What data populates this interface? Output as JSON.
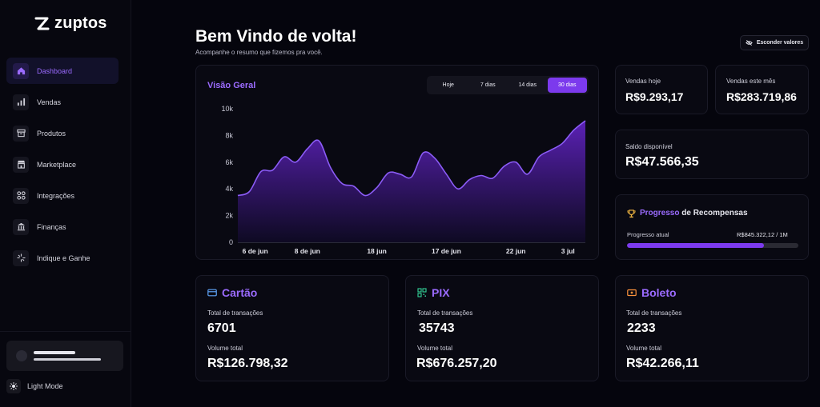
{
  "brand": {
    "name": "zuptos"
  },
  "sidebar": {
    "items": [
      {
        "label": "Dashboard",
        "icon": "home-icon",
        "active": true
      },
      {
        "label": "Vendas",
        "icon": "bar-chart-icon",
        "active": false
      },
      {
        "label": "Produtos",
        "icon": "box-icon",
        "active": false
      },
      {
        "label": "Marketplace",
        "icon": "store-icon",
        "active": false
      },
      {
        "label": "Integrações",
        "icon": "grid-icon",
        "active": false
      },
      {
        "label": "Finanças",
        "icon": "bank-icon",
        "active": false
      },
      {
        "label": "Indique e Ganhe",
        "icon": "sparkle-icon",
        "active": false
      }
    ],
    "light_mode_label": "Light Mode"
  },
  "header": {
    "title": "Bem Vindo de volta!",
    "subtitle": "Acompanhe o resumo que fizemos pra você.",
    "hide_values_label": "Esconder valores"
  },
  "overview": {
    "title": "Visão Geral",
    "tabs": [
      {
        "label": "Hoje",
        "active": false
      },
      {
        "label": "7 dias",
        "active": false
      },
      {
        "label": "14 dias",
        "active": false
      },
      {
        "label": "30 dias",
        "active": true
      }
    ]
  },
  "chart_data": {
    "type": "area",
    "title": "",
    "xlabel": "",
    "ylabel": "",
    "ylim": [
      0,
      10000
    ],
    "y_ticks": [
      0,
      2000,
      4000,
      6000,
      8000,
      10000
    ],
    "y_tick_labels": [
      "0",
      "2k",
      "4k",
      "6k",
      "8k",
      "10k"
    ],
    "x_tick_labels": [
      "6 de jun",
      "8 de jun",
      "18 jun",
      "17 de jun",
      "22 jun",
      "3 jul"
    ],
    "x_tick_positions": [
      1,
      4,
      8,
      12,
      16,
      19
    ],
    "grid": false,
    "series": [
      {
        "values": [
          3500,
          3800,
          5300,
          5400,
          6400,
          6000,
          7000,
          7600,
          5600,
          4400,
          4200,
          3500,
          4100,
          5200,
          5100,
          4900,
          6700,
          6300,
          5100,
          4000,
          4700,
          5000,
          4800,
          5700,
          6000,
          5100,
          6400,
          6900,
          7400,
          8400,
          9100
        ]
      }
    ],
    "colors": {
      "fill_top": "#5b21b6",
      "line": "#8b5cf6"
    }
  },
  "stats": {
    "sales_today": {
      "label": "Vendas hoje",
      "value": "R$9.293,17"
    },
    "sales_month": {
      "label": "Vendas este mês",
      "value": "R$283.719,86"
    },
    "balance": {
      "label": "Saldo disponível",
      "value": "R$47.566,35"
    }
  },
  "rewards": {
    "title_a": "Progresso",
    "title_b": "de Recompensas",
    "current_label": "Progresso atual",
    "current_value": "R$845.322,12 / 1M",
    "progress": 0.8
  },
  "payments": [
    {
      "title": "Cartão",
      "icon": "card-icon",
      "tx_label": "Total de transações",
      "tx_value": "6701",
      "vol_label": "Volume total",
      "vol_value": "R$126.798,32"
    },
    {
      "title": "PIX",
      "icon": "qr-icon",
      "tx_label": "Total de transações",
      "tx_value": "35743",
      "vol_label": "Volume total",
      "vol_value": "R$676.257,20"
    },
    {
      "title": "Boleto",
      "icon": "ticket-icon",
      "tx_label": "Total de transações",
      "tx_value": "2233",
      "vol_label": "Volume total",
      "vol_value": "R$42.266,11"
    }
  ]
}
